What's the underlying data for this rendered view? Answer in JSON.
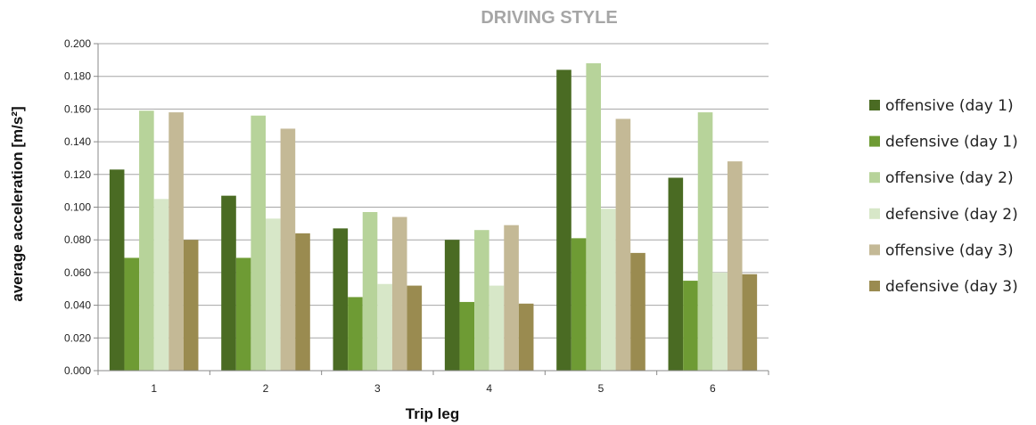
{
  "chart_data": {
    "type": "bar",
    "title": "DRIVING STYLE",
    "xlabel": "Trip leg",
    "ylabel": "average acceleration [m/s²]",
    "categories": [
      "1",
      "2",
      "3",
      "4",
      "5",
      "6"
    ],
    "ylim": [
      0,
      0.2
    ],
    "ytick_step": 0.02,
    "ytick_labels": [
      "0.000",
      "0.020",
      "0.040",
      "0.060",
      "0.080",
      "0.100",
      "0.120",
      "0.140",
      "0.160",
      "0.180",
      "0.200"
    ],
    "grid": true,
    "legend_position": "right",
    "series": [
      {
        "name": "offensive (day 1)",
        "color": "#4a6b23",
        "values": [
          0.123,
          0.107,
          0.087,
          0.08,
          0.184,
          0.118
        ]
      },
      {
        "name": "defensive (day 1)",
        "color": "#6e9b34",
        "values": [
          0.069,
          0.069,
          0.045,
          0.042,
          0.081,
          0.055
        ]
      },
      {
        "name": "offensive (day 2)",
        "color": "#b7d39a",
        "values": [
          0.159,
          0.156,
          0.097,
          0.086,
          0.188,
          0.158
        ]
      },
      {
        "name": "defensive (day 2)",
        "color": "#d7e7c8",
        "values": [
          0.105,
          0.093,
          0.053,
          0.052,
          0.099,
          0.06
        ]
      },
      {
        "name": "offensive (day 3)",
        "color": "#c4b996",
        "values": [
          0.158,
          0.148,
          0.094,
          0.089,
          0.154,
          0.128
        ]
      },
      {
        "name": "defensive (day 3)",
        "color": "#9a8b50",
        "values": [
          0.08,
          0.084,
          0.052,
          0.041,
          0.072,
          0.059
        ]
      }
    ]
  }
}
